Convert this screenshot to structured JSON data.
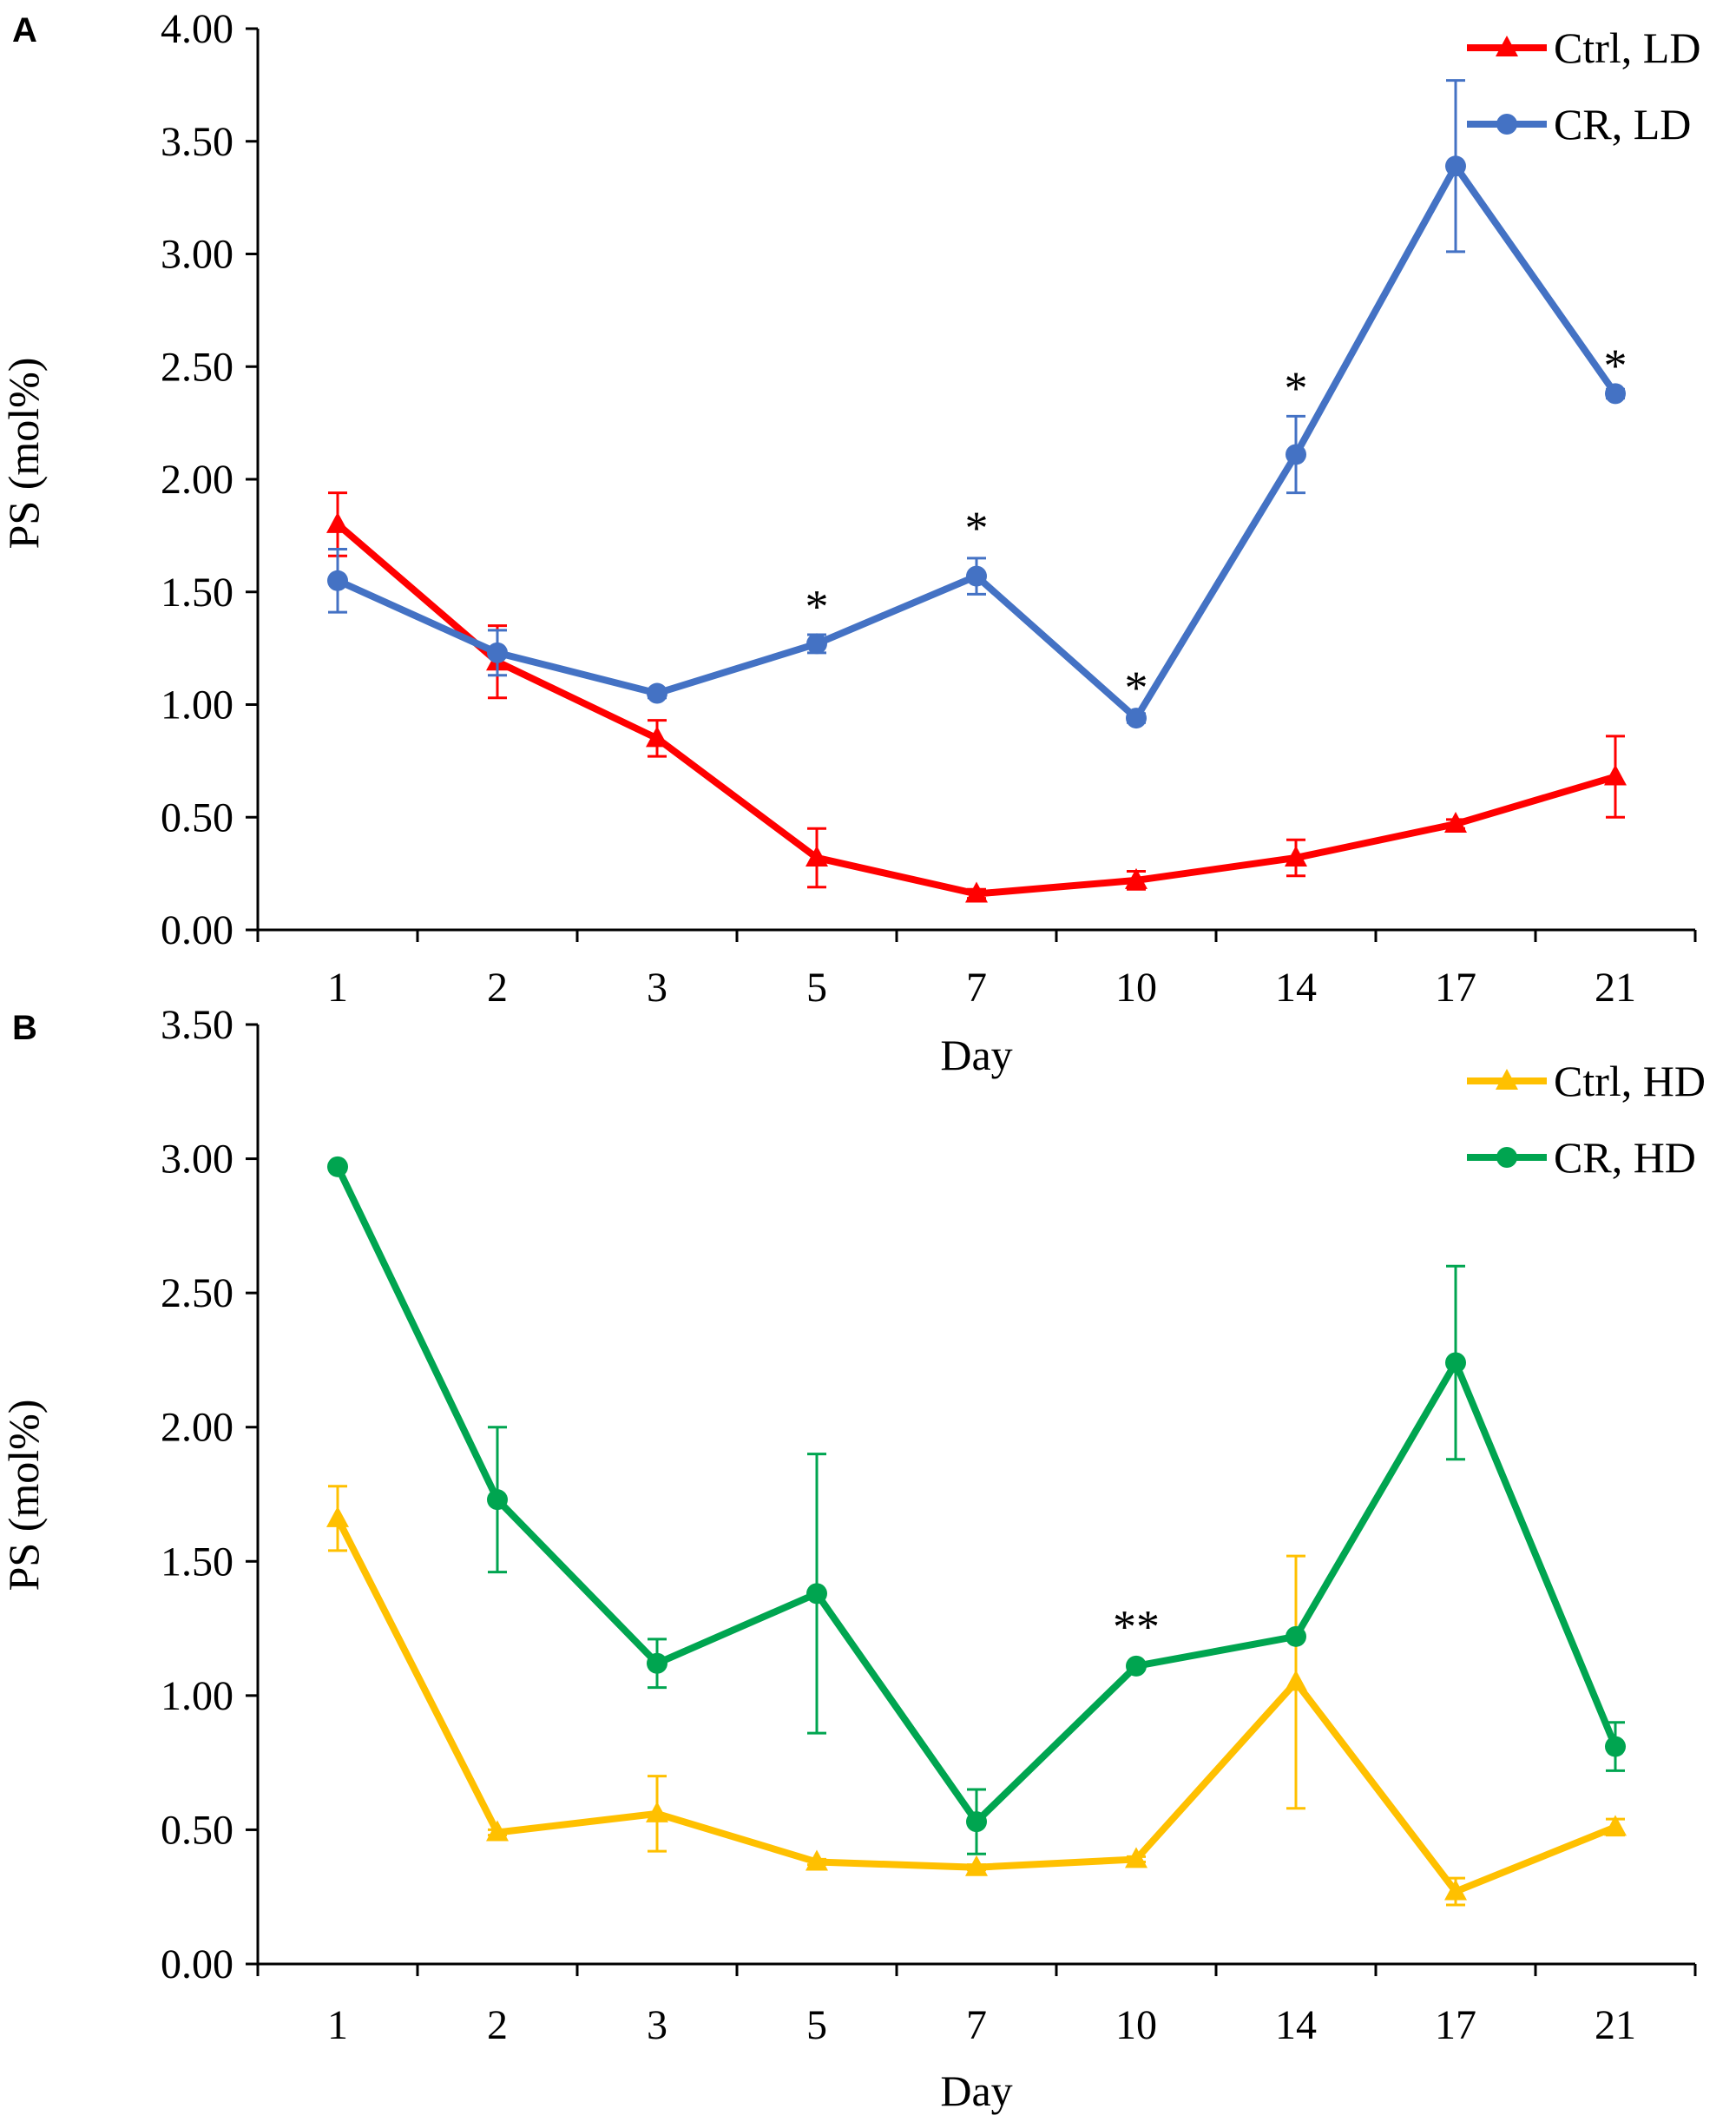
{
  "chart_data": [
    {
      "type": "line",
      "panel_label": "A",
      "categories": [
        "1",
        "2",
        "3",
        "5",
        "7",
        "10",
        "14",
        "17",
        "21"
      ],
      "xlabel": "Day",
      "ylabel": "PS (mol%)",
      "ylim": [
        0,
        4
      ],
      "yticks": [
        "0.00",
        "0.50",
        "1.00",
        "1.50",
        "2.00",
        "2.50",
        "3.00",
        "3.50",
        "4.00"
      ],
      "legend_position": "top-right",
      "grid": false,
      "series": [
        {
          "name": "Ctrl, LD",
          "color": "#FF0000",
          "marker": "triangle",
          "values": [
            1.8,
            1.19,
            0.85,
            0.32,
            0.16,
            0.22,
            0.32,
            0.47,
            0.68
          ],
          "errors": [
            0.14,
            0.16,
            0.08,
            0.13,
            0.02,
            0.04,
            0.08,
            0.02,
            0.18
          ]
        },
        {
          "name": "CR, LD",
          "color": "#4472C4",
          "marker": "circle",
          "values": [
            1.55,
            1.23,
            1.05,
            1.27,
            1.57,
            0.94,
            2.11,
            3.39,
            2.38
          ],
          "errors": [
            0.14,
            0.1,
            0.02,
            0.04,
            0.08,
            0.02,
            0.17,
            0.38,
            0.02
          ]
        }
      ],
      "annotations": [
        {
          "category": "5",
          "text": "*",
          "above": 1.45
        },
        {
          "category": "7",
          "text": "*",
          "above": 1.8
        },
        {
          "category": "10",
          "text": "*",
          "above": 1.09
        },
        {
          "category": "14",
          "text": "*",
          "above": 2.42
        },
        {
          "category": "21",
          "text": "*",
          "above": 2.52
        }
      ]
    },
    {
      "type": "line",
      "panel_label": "B",
      "categories": [
        "1",
        "2",
        "3",
        "5",
        "7",
        "10",
        "14",
        "17",
        "21"
      ],
      "xlabel": "Day",
      "ylabel": "PS (mol%)",
      "ylim": [
        0,
        3.5
      ],
      "yticks": [
        "0.00",
        "0.50",
        "1.00",
        "1.50",
        "2.00",
        "2.50",
        "3.00",
        "3.50"
      ],
      "legend_position": "top-right",
      "grid": false,
      "series": [
        {
          "name": "Ctrl, HD",
          "color": "#FFC000",
          "marker": "triangle",
          "values": [
            1.66,
            0.49,
            0.56,
            0.38,
            0.36,
            0.39,
            1.05,
            0.27,
            0.51
          ],
          "errors": [
            0.12,
            0.01,
            0.14,
            0.01,
            0.01,
            0.01,
            0.47,
            0.05,
            0.03
          ]
        },
        {
          "name": "CR, HD",
          "color": "#00A550",
          "marker": "circle",
          "values": [
            2.97,
            1.73,
            1.12,
            1.38,
            0.53,
            1.11,
            1.22,
            2.24,
            0.81
          ],
          "errors": [
            0.01,
            0.27,
            0.09,
            0.52,
            0.12,
            0.01,
            0.01,
            0.36,
            0.09
          ]
        }
      ],
      "annotations": [
        {
          "category": "10",
          "text": "**",
          "above": 1.27
        }
      ]
    }
  ]
}
